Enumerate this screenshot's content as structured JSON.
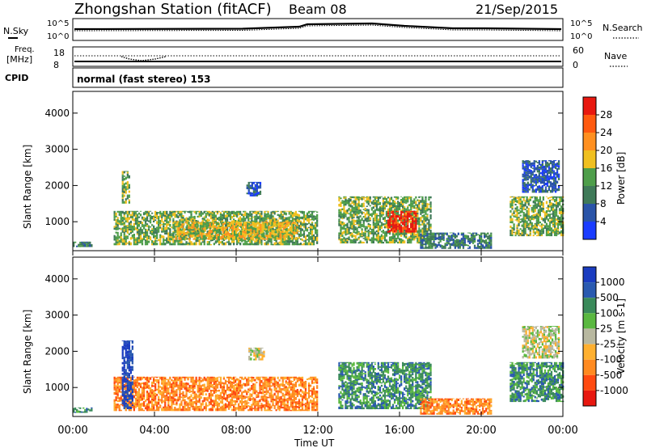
{
  "header": {
    "station": "Zhongshan Station (fitACF)",
    "beam": "Beam 08",
    "date": "21/Sep/2015"
  },
  "top_panels": {
    "nsky_label": "N.Sky",
    "nsearch_label": "N.Search",
    "noise_ticks_left": [
      "10^5",
      "10^0"
    ],
    "noise_ticks_right": [
      "10^5",
      "10^0"
    ],
    "freq_label": "Freq.",
    "freq_unit": "[MHz]",
    "freq_ticks": [
      "18",
      "8"
    ],
    "nave_label": "Nave",
    "nave_ticks": [
      "60",
      "0"
    ],
    "cpid_label": "CPID",
    "cpid_text": "normal (fast stereo) 153"
  },
  "x_axis": {
    "label": "Time UT",
    "ticks": [
      "00:00",
      "04:00",
      "08:00",
      "12:00",
      "16:00",
      "20:00",
      "00:00"
    ]
  },
  "colors": {
    "power_scale": [
      "#1a3cff",
      "#2a54a8",
      "#3f7a58",
      "#4e9e4a",
      "#f0c020",
      "#ff9020",
      "#ff5a10",
      "#e81810"
    ],
    "velocity_scale": [
      "#e81810",
      "#ff4a10",
      "#ff8a20",
      "#ffb030",
      "#b8b8a0",
      "#5ab840",
      "#3a8a5a",
      "#2a5ab0",
      "#1a3cc0"
    ]
  },
  "chart_data": [
    {
      "type": "heatmap",
      "title": "Power",
      "ylabel": "Slant Range [km]",
      "xlabel": "",
      "ylim": [
        200,
        4600
      ],
      "yticks": [
        "1000",
        "2000",
        "3000",
        "4000"
      ],
      "colorbar_label": "Power [dB]",
      "colorbar_ticks": [
        "28",
        "24",
        "20",
        "16",
        "12",
        "8",
        "4"
      ],
      "x_range_hours": [
        0,
        24
      ],
      "regions": [
        {
          "t0": 0.0,
          "t1": 0.9,
          "r0": 300,
          "r1": 450,
          "level": 2
        },
        {
          "t0": 2.0,
          "t1": 12.0,
          "r0": 350,
          "r1": 1300,
          "level": 3
        },
        {
          "t0": 5.0,
          "t1": 11.0,
          "r0": 500,
          "r1": 1000,
          "level": 4
        },
        {
          "t0": 2.4,
          "t1": 2.8,
          "r0": 1500,
          "r1": 2400,
          "level": 3
        },
        {
          "t0": 8.5,
          "t1": 9.2,
          "r0": 1700,
          "r1": 2100,
          "level": 1
        },
        {
          "t0": 13.0,
          "t1": 17.5,
          "r0": 400,
          "r1": 1700,
          "level": 3
        },
        {
          "t0": 15.4,
          "t1": 16.8,
          "r0": 700,
          "r1": 1300,
          "level": 7
        },
        {
          "t0": 17.0,
          "t1": 20.5,
          "r0": 250,
          "r1": 700,
          "level": 2
        },
        {
          "t0": 21.4,
          "t1": 24.0,
          "r0": 600,
          "r1": 1700,
          "level": 3
        },
        {
          "t0": 22.0,
          "t1": 23.8,
          "r0": 1800,
          "r1": 2700,
          "level": 1
        }
      ]
    },
    {
      "type": "heatmap",
      "title": "Velocity",
      "ylabel": "Slant Range [km]",
      "xlabel": "Time UT",
      "ylim": [
        200,
        4600
      ],
      "yticks": [
        "1000",
        "2000",
        "3000",
        "4000"
      ],
      "colorbar_label": "Velocity [m s-1]",
      "colorbar_ticks": [
        "1000",
        "500",
        "100",
        "25",
        "-25",
        "-100",
        "-500",
        "-1000"
      ],
      "x_range_hours": [
        0,
        24
      ],
      "regions": [
        {
          "t0": 0.0,
          "t1": 0.9,
          "r0": 300,
          "r1": 450,
          "level": 6
        },
        {
          "t0": 2.0,
          "t1": 12.0,
          "r0": 350,
          "r1": 1300,
          "level": 2
        },
        {
          "t0": 2.4,
          "t1": 2.9,
          "r0": 400,
          "r1": 2300,
          "level": 8
        },
        {
          "t0": 8.6,
          "t1": 9.4,
          "r0": 1750,
          "r1": 2100,
          "level": 4
        },
        {
          "t0": 13.0,
          "t1": 17.5,
          "r0": 400,
          "r1": 1700,
          "level": 6
        },
        {
          "t0": 17.0,
          "t1": 20.5,
          "r0": 250,
          "r1": 700,
          "level": 2
        },
        {
          "t0": 21.4,
          "t1": 24.0,
          "r0": 600,
          "r1": 1700,
          "level": 6
        },
        {
          "t0": 22.0,
          "t1": 23.8,
          "r0": 1800,
          "r1": 2700,
          "level": 4
        }
      ]
    }
  ]
}
